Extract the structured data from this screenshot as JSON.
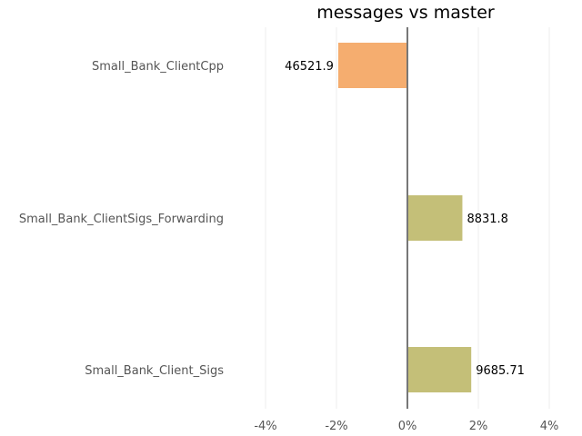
{
  "chart_data": {
    "type": "bar",
    "orientation": "horizontal",
    "title": "messages vs master",
    "xlabel": "",
    "ylabel": "",
    "xlim": [
      -4,
      4
    ],
    "x_ticks": [
      -4,
      -2,
      0,
      2,
      4
    ],
    "x_tick_labels": [
      "-4%",
      "-2%",
      "0%",
      "2%",
      "4%"
    ],
    "grid": "vertical",
    "categories": [
      "Small_Bank_ClientCpp",
      "Small_Bank_ClientSigs_Forwarding",
      "Small_Bank_Client_Sigs"
    ],
    "values": [
      -1.95,
      1.55,
      1.8
    ],
    "value_labels": [
      "46521.9",
      "8831.8",
      "9685.71"
    ],
    "colors": [
      "#f5ad6f",
      "#c4bf78",
      "#c4bf78"
    ]
  }
}
